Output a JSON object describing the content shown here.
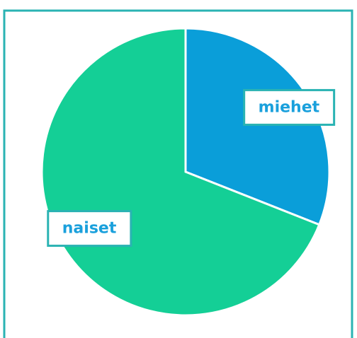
{
  "chart_data": {
    "type": "pie",
    "categories": [
      "miehet",
      "naiset"
    ],
    "values": [
      31,
      69
    ],
    "colors": [
      "#0a9ed9",
      "#14cf96"
    ],
    "label_color": "#1aa0dc"
  }
}
